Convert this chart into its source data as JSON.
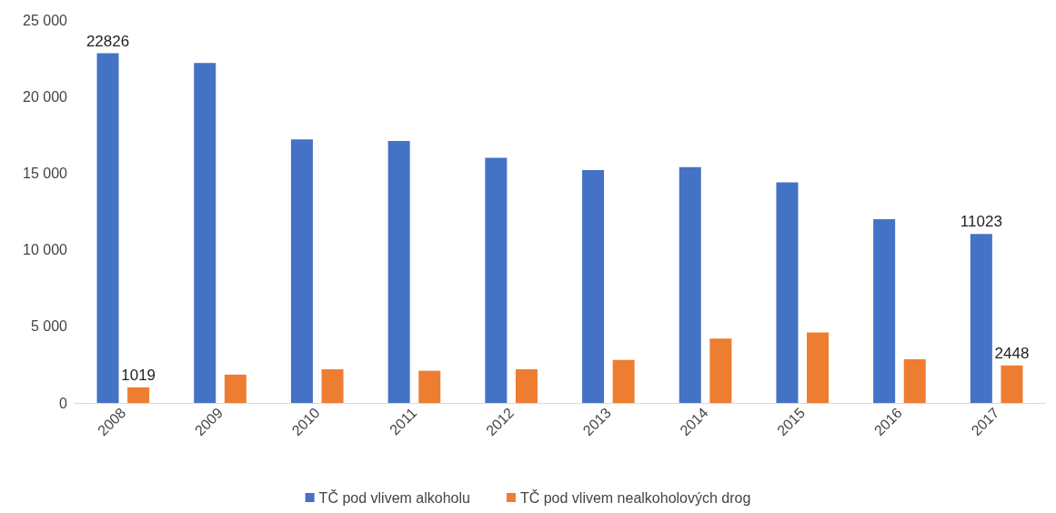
{
  "chart_data": {
    "type": "bar",
    "categories": [
      "2008",
      "2009",
      "2010",
      "2011",
      "2012",
      "2013",
      "2014",
      "2015",
      "2016",
      "2017"
    ],
    "series": [
      {
        "name": "TČ pod vlivem alkoholu",
        "color": "#4472c4",
        "values": [
          22826,
          22200,
          17200,
          17100,
          16000,
          15200,
          15400,
          14400,
          12000,
          11023
        ],
        "value_labels": [
          "22826",
          null,
          null,
          null,
          null,
          null,
          null,
          null,
          null,
          "11023"
        ]
      },
      {
        "name": "TČ pod vlivem nealkoholových drog",
        "color": "#ed7d31",
        "values": [
          1019,
          1850,
          2200,
          2100,
          2200,
          2800,
          4200,
          4600,
          2850,
          2448
        ],
        "value_labels": [
          "1019",
          null,
          null,
          null,
          null,
          null,
          null,
          null,
          null,
          "2448"
        ]
      }
    ],
    "ylim": [
      0,
      25000
    ],
    "yticks": [
      0,
      {
        "value": 5000,
        "label": "5 000"
      },
      {
        "value": 10000,
        "label": "10 000"
      },
      {
        "value": 15000,
        "label": "15 000"
      },
      {
        "value": 20000,
        "label": "20 000"
      },
      {
        "value": 25000,
        "label": "25 000"
      }
    ],
    "grid": false,
    "legend": "bottom"
  }
}
